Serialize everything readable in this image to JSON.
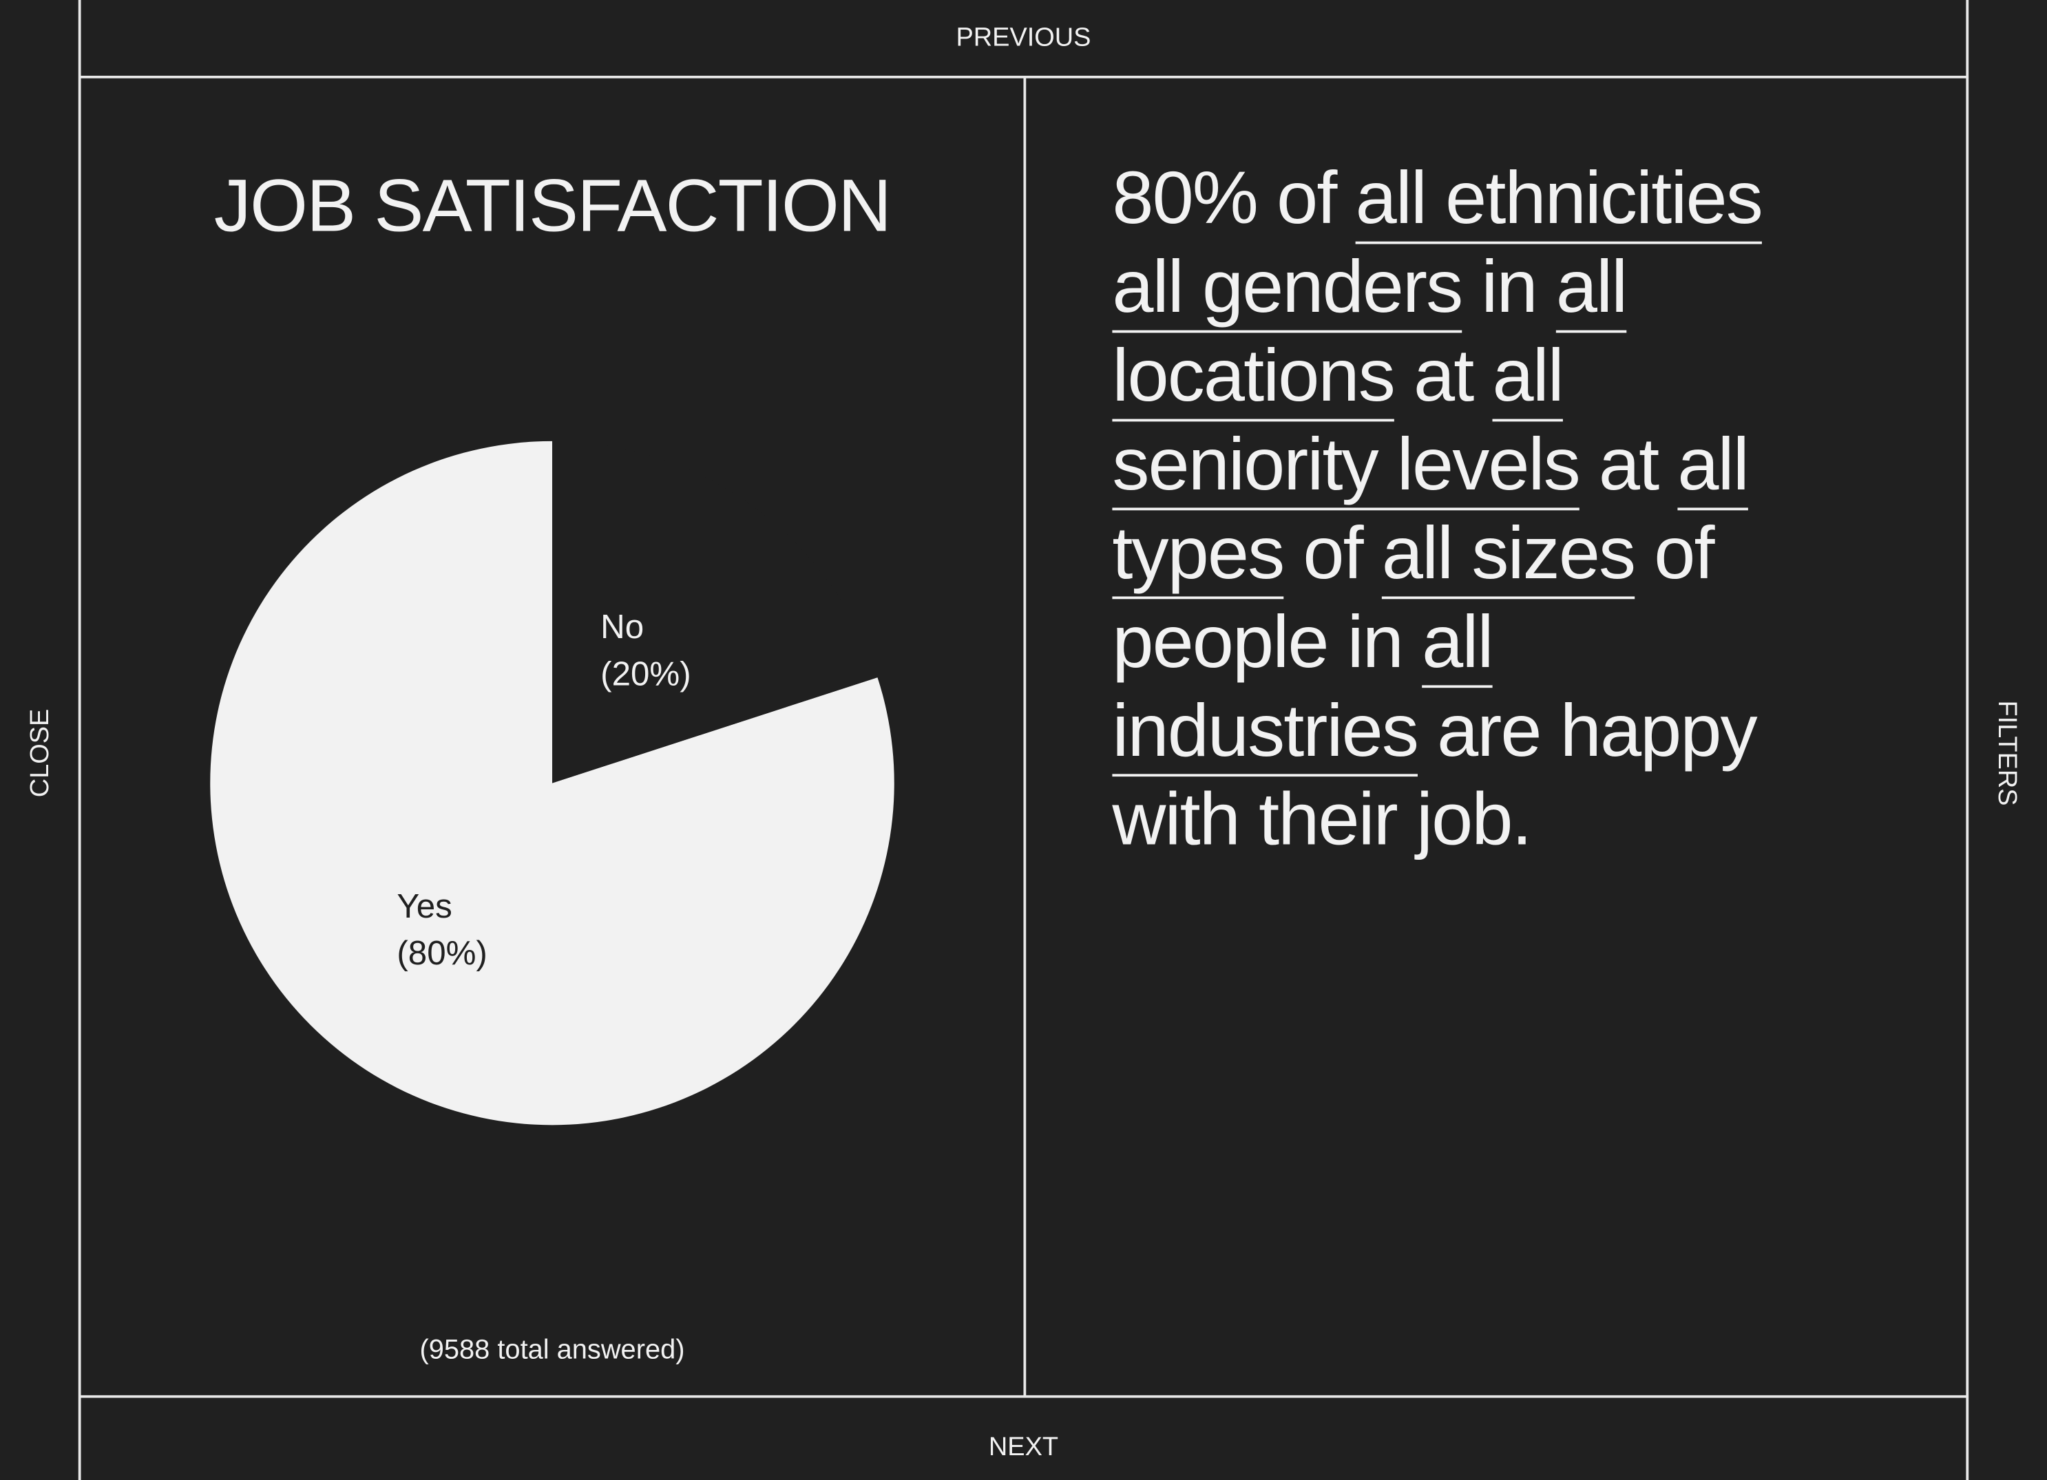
{
  "nav": {
    "previous": "PREVIOUS",
    "next": "NEXT",
    "close": "CLOSE",
    "filters": "FILTERS"
  },
  "chart_data": {
    "type": "pie",
    "title": "JOB SATISFACTION",
    "categories": [
      "Yes",
      "No"
    ],
    "values": [
      80,
      20
    ],
    "value_labels": [
      "(80%)",
      "(20%)"
    ],
    "colors": [
      "#f2f2f2",
      "#202020"
    ],
    "label_colors": [
      "#202020",
      "#f2f2f2"
    ],
    "note": "(9588 total answered)"
  },
  "statement": {
    "lines": [
      [
        {
          "text": "80% of "
        },
        {
          "text": "all ethnicities",
          "underline": true
        }
      ],
      [
        {
          "text": "all genders",
          "underline": true
        },
        {
          "text": " in "
        },
        {
          "text": "all",
          "underline": true
        }
      ],
      [
        {
          "text": "locations",
          "underline": true
        },
        {
          "text": " at "
        },
        {
          "text": "all",
          "underline": true
        }
      ],
      [
        {
          "text": "seniority levels",
          "underline": true
        },
        {
          "text": " at "
        },
        {
          "text": "all",
          "underline": true
        }
      ],
      [
        {
          "text": "types",
          "underline": true
        },
        {
          "text": " of "
        },
        {
          "text": "all sizes",
          "underline": true
        },
        {
          "text": " of"
        }
      ],
      [
        {
          "text": "people in "
        },
        {
          "text": "all",
          "underline": true
        }
      ],
      [
        {
          "text": "industries",
          "underline": true
        },
        {
          "text": " are happy"
        }
      ],
      [
        {
          "text": "with their job."
        }
      ]
    ]
  }
}
